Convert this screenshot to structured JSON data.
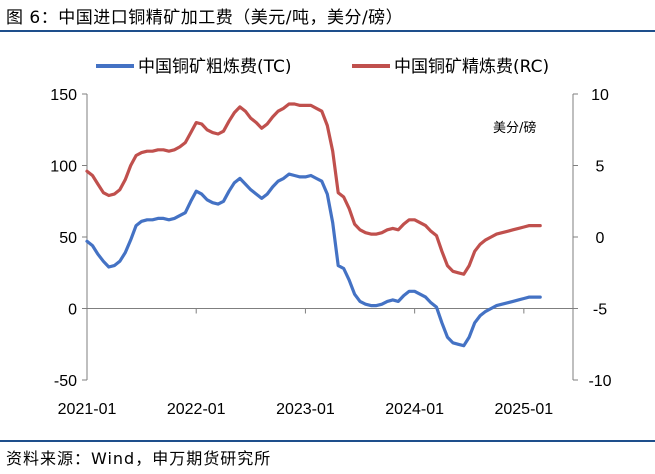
{
  "title": "图 6：中国进口铜精矿加工费（美元/吨，美分/磅）",
  "source": "资料来源：Wind，申万期货研究所",
  "chart_data": {
    "type": "line",
    "x_ticks": [
      "2021-01",
      "2022-01",
      "2023-01",
      "2024-01",
      "2025-01"
    ],
    "y_left": {
      "ticks": [
        "150",
        "100",
        "50",
        "0",
        "-50"
      ],
      "lim": [
        -50,
        150
      ]
    },
    "y_right": {
      "ticks": [
        "10",
        "5",
        "0",
        "-5",
        "-10"
      ],
      "lim": [
        -10,
        10
      ],
      "unit_label": "美分/磅"
    },
    "series": [
      {
        "name": "中国铜矿粗炼费(TC)",
        "axis": "left",
        "color": "#4472c4",
        "x": [
          2021.0,
          2021.05,
          2021.1,
          2021.15,
          2021.2,
          2021.25,
          2021.3,
          2021.35,
          2021.4,
          2021.45,
          2021.5,
          2021.55,
          2021.6,
          2021.65,
          2021.7,
          2021.75,
          2021.8,
          2021.85,
          2021.9,
          2021.95,
          2022.0,
          2022.05,
          2022.1,
          2022.15,
          2022.2,
          2022.25,
          2022.3,
          2022.35,
          2022.4,
          2022.45,
          2022.5,
          2022.55,
          2022.6,
          2022.65,
          2022.7,
          2022.75,
          2022.8,
          2022.85,
          2022.9,
          2022.95,
          2023.0,
          2023.05,
          2023.1,
          2023.15,
          2023.2,
          2023.25,
          2023.3,
          2023.35,
          2023.4,
          2023.45,
          2023.5,
          2023.55,
          2023.6,
          2023.65,
          2023.7,
          2023.75,
          2023.8,
          2023.85,
          2023.9,
          2023.95,
          2024.0,
          2024.05,
          2024.1,
          2024.15,
          2024.2,
          2024.25,
          2024.3,
          2024.35,
          2024.4,
          2024.45,
          2024.5,
          2024.55,
          2024.6,
          2024.65,
          2024.7,
          2024.75,
          2024.8,
          2024.85,
          2024.9,
          2024.95,
          2025.0,
          2025.05,
          2025.1,
          2025.15
        ],
        "values": [
          47,
          44,
          38,
          33,
          29,
          30,
          33,
          39,
          48,
          58,
          61,
          62,
          62,
          63,
          63,
          62,
          63,
          65,
          67,
          75,
          82,
          80,
          76,
          74,
          73,
          75,
          82,
          88,
          91,
          87,
          83,
          80,
          77,
          80,
          85,
          89,
          91,
          94,
          93,
          92,
          92,
          93,
          91,
          89,
          80,
          60,
          30,
          28,
          20,
          10,
          5,
          3,
          2,
          2,
          3,
          5,
          6,
          5,
          9,
          12,
          12,
          10,
          8,
          4,
          1,
          -10,
          -20,
          -24,
          -25,
          -26,
          -20,
          -10,
          -5,
          -2,
          0,
          2,
          3,
          4,
          5,
          6,
          7,
          8,
          8,
          8
        ]
      },
      {
        "name": "中国铜矿精炼费(RC)",
        "axis": "right",
        "color": "#c0504d",
        "x": [
          2021.0,
          2021.05,
          2021.1,
          2021.15,
          2021.2,
          2021.25,
          2021.3,
          2021.35,
          2021.4,
          2021.45,
          2021.5,
          2021.55,
          2021.6,
          2021.65,
          2021.7,
          2021.75,
          2021.8,
          2021.85,
          2021.9,
          2021.95,
          2022.0,
          2022.05,
          2022.1,
          2022.15,
          2022.2,
          2022.25,
          2022.3,
          2022.35,
          2022.4,
          2022.45,
          2022.5,
          2022.55,
          2022.6,
          2022.65,
          2022.7,
          2022.75,
          2022.8,
          2022.85,
          2022.9,
          2022.95,
          2023.0,
          2023.05,
          2023.1,
          2023.15,
          2023.2,
          2023.25,
          2023.3,
          2023.35,
          2023.4,
          2023.45,
          2023.5,
          2023.55,
          2023.6,
          2023.65,
          2023.7,
          2023.75,
          2023.8,
          2023.85,
          2023.9,
          2023.95,
          2024.0,
          2024.05,
          2024.1,
          2024.15,
          2024.2,
          2024.25,
          2024.3,
          2024.35,
          2024.4,
          2024.45,
          2024.5,
          2024.55,
          2024.6,
          2024.65,
          2024.7,
          2024.75,
          2024.8,
          2024.85,
          2024.9,
          2024.95,
          2025.0,
          2025.05,
          2025.1,
          2025.15
        ],
        "values": [
          4.6,
          4.3,
          3.7,
          3.1,
          2.9,
          3.0,
          3.3,
          4.0,
          5.0,
          5.7,
          5.9,
          6.0,
          6.0,
          6.1,
          6.1,
          6.0,
          6.1,
          6.3,
          6.6,
          7.3,
          8.0,
          7.9,
          7.5,
          7.3,
          7.2,
          7.4,
          8.1,
          8.7,
          9.1,
          8.8,
          8.3,
          8.0,
          7.6,
          7.9,
          8.4,
          8.8,
          9.0,
          9.3,
          9.3,
          9.2,
          9.2,
          9.2,
          9.0,
          8.8,
          7.8,
          6.0,
          3.1,
          2.8,
          2.0,
          0.9,
          0.5,
          0.3,
          0.2,
          0.2,
          0.3,
          0.5,
          0.6,
          0.5,
          0.9,
          1.2,
          1.2,
          1.0,
          0.8,
          0.4,
          0.1,
          -1.0,
          -2.0,
          -2.4,
          -2.5,
          -2.6,
          -2.0,
          -1.0,
          -0.5,
          -0.2,
          0.0,
          0.2,
          0.3,
          0.4,
          0.5,
          0.6,
          0.7,
          0.8,
          0.8,
          0.8
        ]
      }
    ]
  }
}
